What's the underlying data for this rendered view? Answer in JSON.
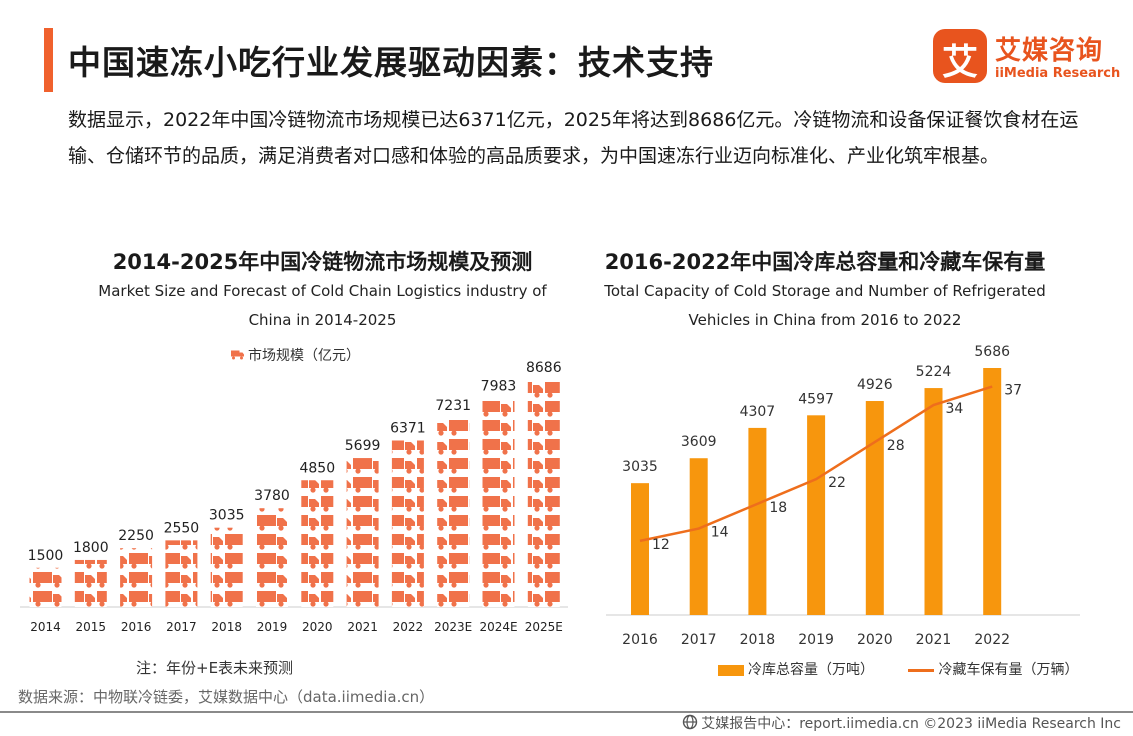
{
  "header": {
    "title": "中国速冻小吃行业发展驱动因素：技术支持",
    "logo_cn": "艾媒咨询",
    "logo_en": "iiMedia Research",
    "logo_mark": "艾"
  },
  "description": "数据显示，2022年中国冷链物流市场规模已达6371亿元，2025年将达到8686亿元。冷链物流和设备保证餐饮食材在运输、仓储环节的品质，满足消费者对口感和体验的高品质要求，为中国速冻行业迈向标准化、产业化筑牢根基。",
  "chart_data": [
    {
      "type": "bar",
      "title": "2014-2025年中国冷链物流市场规模及预测",
      "subtitle_lines": [
        "Market Size and Forecast of Cold Chain Logistics industry of",
        "China in 2014-2025"
      ],
      "categories": [
        "2014",
        "2015",
        "2016",
        "2017",
        "2018",
        "2019",
        "2020",
        "2021",
        "2022",
        "2023E",
        "2024E",
        "2025E"
      ],
      "series": [
        {
          "name": "市场规模（亿元）",
          "values": [
            1500,
            1800,
            2250,
            2550,
            3035,
            3780,
            4850,
            5699,
            6371,
            7231,
            7983,
            8686
          ]
        }
      ],
      "ylim": [
        0,
        8686
      ],
      "bar_style": "stacked truck pictograph",
      "color": "#f0724a",
      "note": "注：年份+E表未来预测"
    },
    {
      "type": "bar+line",
      "title": "2016-2022年中国冷库总容量和冷藏车保有量",
      "subtitle_lines": [
        "Total Capacity of Cold Storage and Number of Refrigerated",
        "Vehicles in China from 2016 to 2022"
      ],
      "categories": [
        "2016",
        "2017",
        "2018",
        "2019",
        "2020",
        "2021",
        "2022"
      ],
      "series": [
        {
          "name": "冷库总容量（万吨）",
          "type": "bar",
          "values": [
            3035,
            3609,
            4307,
            4597,
            4926,
            5224,
            5686
          ],
          "color": "#f7960d"
        },
        {
          "name": "冷藏车保有量（万辆）",
          "type": "line",
          "values": [
            12,
            14,
            18,
            22,
            28,
            34,
            37
          ],
          "color": "#ee6e1c"
        }
      ],
      "bar_ylim": [
        0,
        5686
      ],
      "line_ylim": [
        0,
        40
      ]
    }
  ],
  "footer": {
    "source": "数据来源：中物联冷链委，艾媒数据中心（data.iimedia.cn）",
    "copyright": "艾媒报告中心：report.iimedia.cn   ©2023  iiMedia Research  Inc"
  }
}
